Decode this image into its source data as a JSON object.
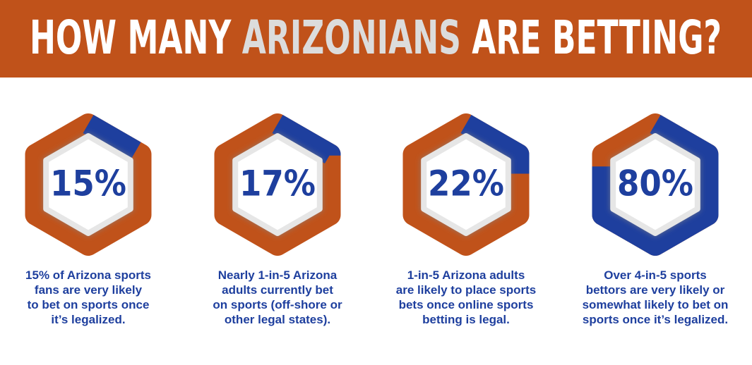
{
  "header": {
    "title_before": "HOW MANY",
    "title_highlight": "ARIZONIANS",
    "title_after": "ARE BETTING?"
  },
  "stats": [
    {
      "value": 15,
      "label": "15%",
      "caption": [
        "15% of Arizona sports",
        "fans are very likely",
        "to bet on sports once",
        "it’s legalized."
      ]
    },
    {
      "value": 17,
      "label": "17%",
      "caption": [
        "Nearly 1-in-5 Arizona",
        "adults currently bet",
        "on sports (off-shore or",
        "other legal states)."
      ]
    },
    {
      "value": 22,
      "label": "22%",
      "caption": [
        "1-in-5 Arizona adults",
        "are likely to place sports",
        "bets once online sports",
        "betting is legal."
      ]
    },
    {
      "value": 80,
      "label": "80%",
      "caption": [
        "Over 4-in-5 sports",
        "bettors are very likely or",
        "somewhat likely to bet on",
        "sports once it’s legalized."
      ]
    }
  ],
  "colors": {
    "track": "#c0521a",
    "fill": "#1e3f9e"
  }
}
